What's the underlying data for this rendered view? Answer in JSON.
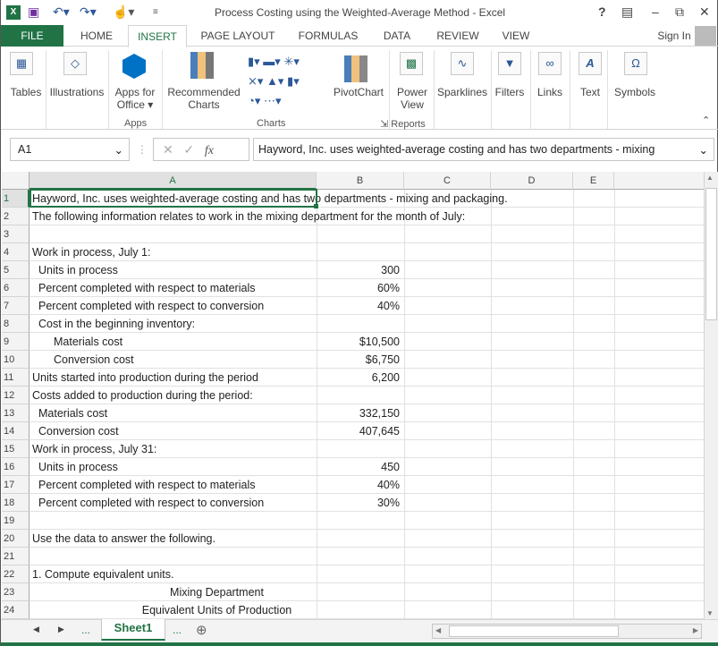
{
  "window": {
    "title": "Process Costing using the Weighted-Average Method - Excel",
    "sign_in": "Sign In"
  },
  "tabs": [
    "FILE",
    "HOME",
    "INSERT",
    "PAGE LAYOUT",
    "FORMULAS",
    "DATA",
    "REVIEW",
    "VIEW"
  ],
  "active_tab": "INSERT",
  "ribbon": {
    "tables": "Tables",
    "illustrations": "Illustrations",
    "apps_for": "Apps for",
    "office": "Office",
    "recommended": "Recommended",
    "charts_lbl": "Charts",
    "pivotchart": "PivotChart",
    "power": "Power",
    "view": "View",
    "sparklines": "Sparklines",
    "filters": "Filters",
    "links": "Links",
    "text": "Text",
    "symbols": "Symbols",
    "group_apps": "Apps",
    "group_charts": "Charts",
    "group_reports": "Reports"
  },
  "formula_bar": {
    "name_box": "A1",
    "fx": "fx",
    "content": "Hayword, Inc. uses weighted-average costing and has two departments - mixing"
  },
  "columns": [
    "A",
    "B",
    "C",
    "D",
    "E"
  ],
  "rows": [
    {
      "n": "1",
      "a": "Hayword, Inc. uses weighted-average costing and has two departments - mixing and packaging.",
      "b": "",
      "indent": 0
    },
    {
      "n": "2",
      "a": "The following information relates to work in the mixing department for the month of July:",
      "b": "",
      "indent": 0
    },
    {
      "n": "3",
      "a": "",
      "b": "",
      "indent": 0
    },
    {
      "n": "4",
      "a": "Work in process, July 1:",
      "b": "",
      "indent": 0
    },
    {
      "n": "5",
      "a": "Units in process",
      "b": "300",
      "indent": 1
    },
    {
      "n": "6",
      "a": "Percent completed with respect to materials",
      "b": "60%",
      "indent": 1
    },
    {
      "n": "7",
      "a": "Percent completed with respect to conversion",
      "b": "40%",
      "indent": 1
    },
    {
      "n": "8",
      "a": "Cost in the beginning inventory:",
      "b": "",
      "indent": 1
    },
    {
      "n": "9",
      "a": "Materials cost",
      "b": "$10,500",
      "indent": 2
    },
    {
      "n": "10",
      "a": "Conversion cost",
      "b": "$6,750",
      "indent": 2
    },
    {
      "n": "11",
      "a": "Units started into production during the period",
      "b": "6,200",
      "indent": 0
    },
    {
      "n": "12",
      "a": "Costs added to production during the period:",
      "b": "",
      "indent": 0
    },
    {
      "n": "13",
      "a": "Materials cost",
      "b": "332,150",
      "indent": 1
    },
    {
      "n": "14",
      "a": "Conversion cost",
      "b": "407,645",
      "indent": 1
    },
    {
      "n": "15",
      "a": "Work in process, July 31:",
      "b": "",
      "indent": 0
    },
    {
      "n": "16",
      "a": "Units in process",
      "b": "450",
      "indent": 1
    },
    {
      "n": "17",
      "a": "Percent completed with respect to materials",
      "b": "40%",
      "indent": 1
    },
    {
      "n": "18",
      "a": "Percent completed with respect to conversion",
      "b": "30%",
      "indent": 1
    },
    {
      "n": "19",
      "a": "",
      "b": "",
      "indent": 0
    },
    {
      "n": "20",
      "a": "Use the data to answer the following.",
      "b": "",
      "indent": 0
    },
    {
      "n": "21",
      "a": "",
      "b": "",
      "indent": 0
    },
    {
      "n": "22",
      "a": "1. Compute equivalent units.",
      "b": "",
      "indent": 0
    },
    {
      "n": "23",
      "a": "Mixing Department",
      "b": "",
      "indent": 0,
      "center": true
    },
    {
      "n": "24",
      "a": "Equivalent Units of Production",
      "b": "",
      "indent": 0,
      "center": true
    }
  ],
  "sheet_tabs": {
    "active": "Sheet1",
    "more": "..."
  },
  "colors": {
    "accent": "#217346"
  }
}
